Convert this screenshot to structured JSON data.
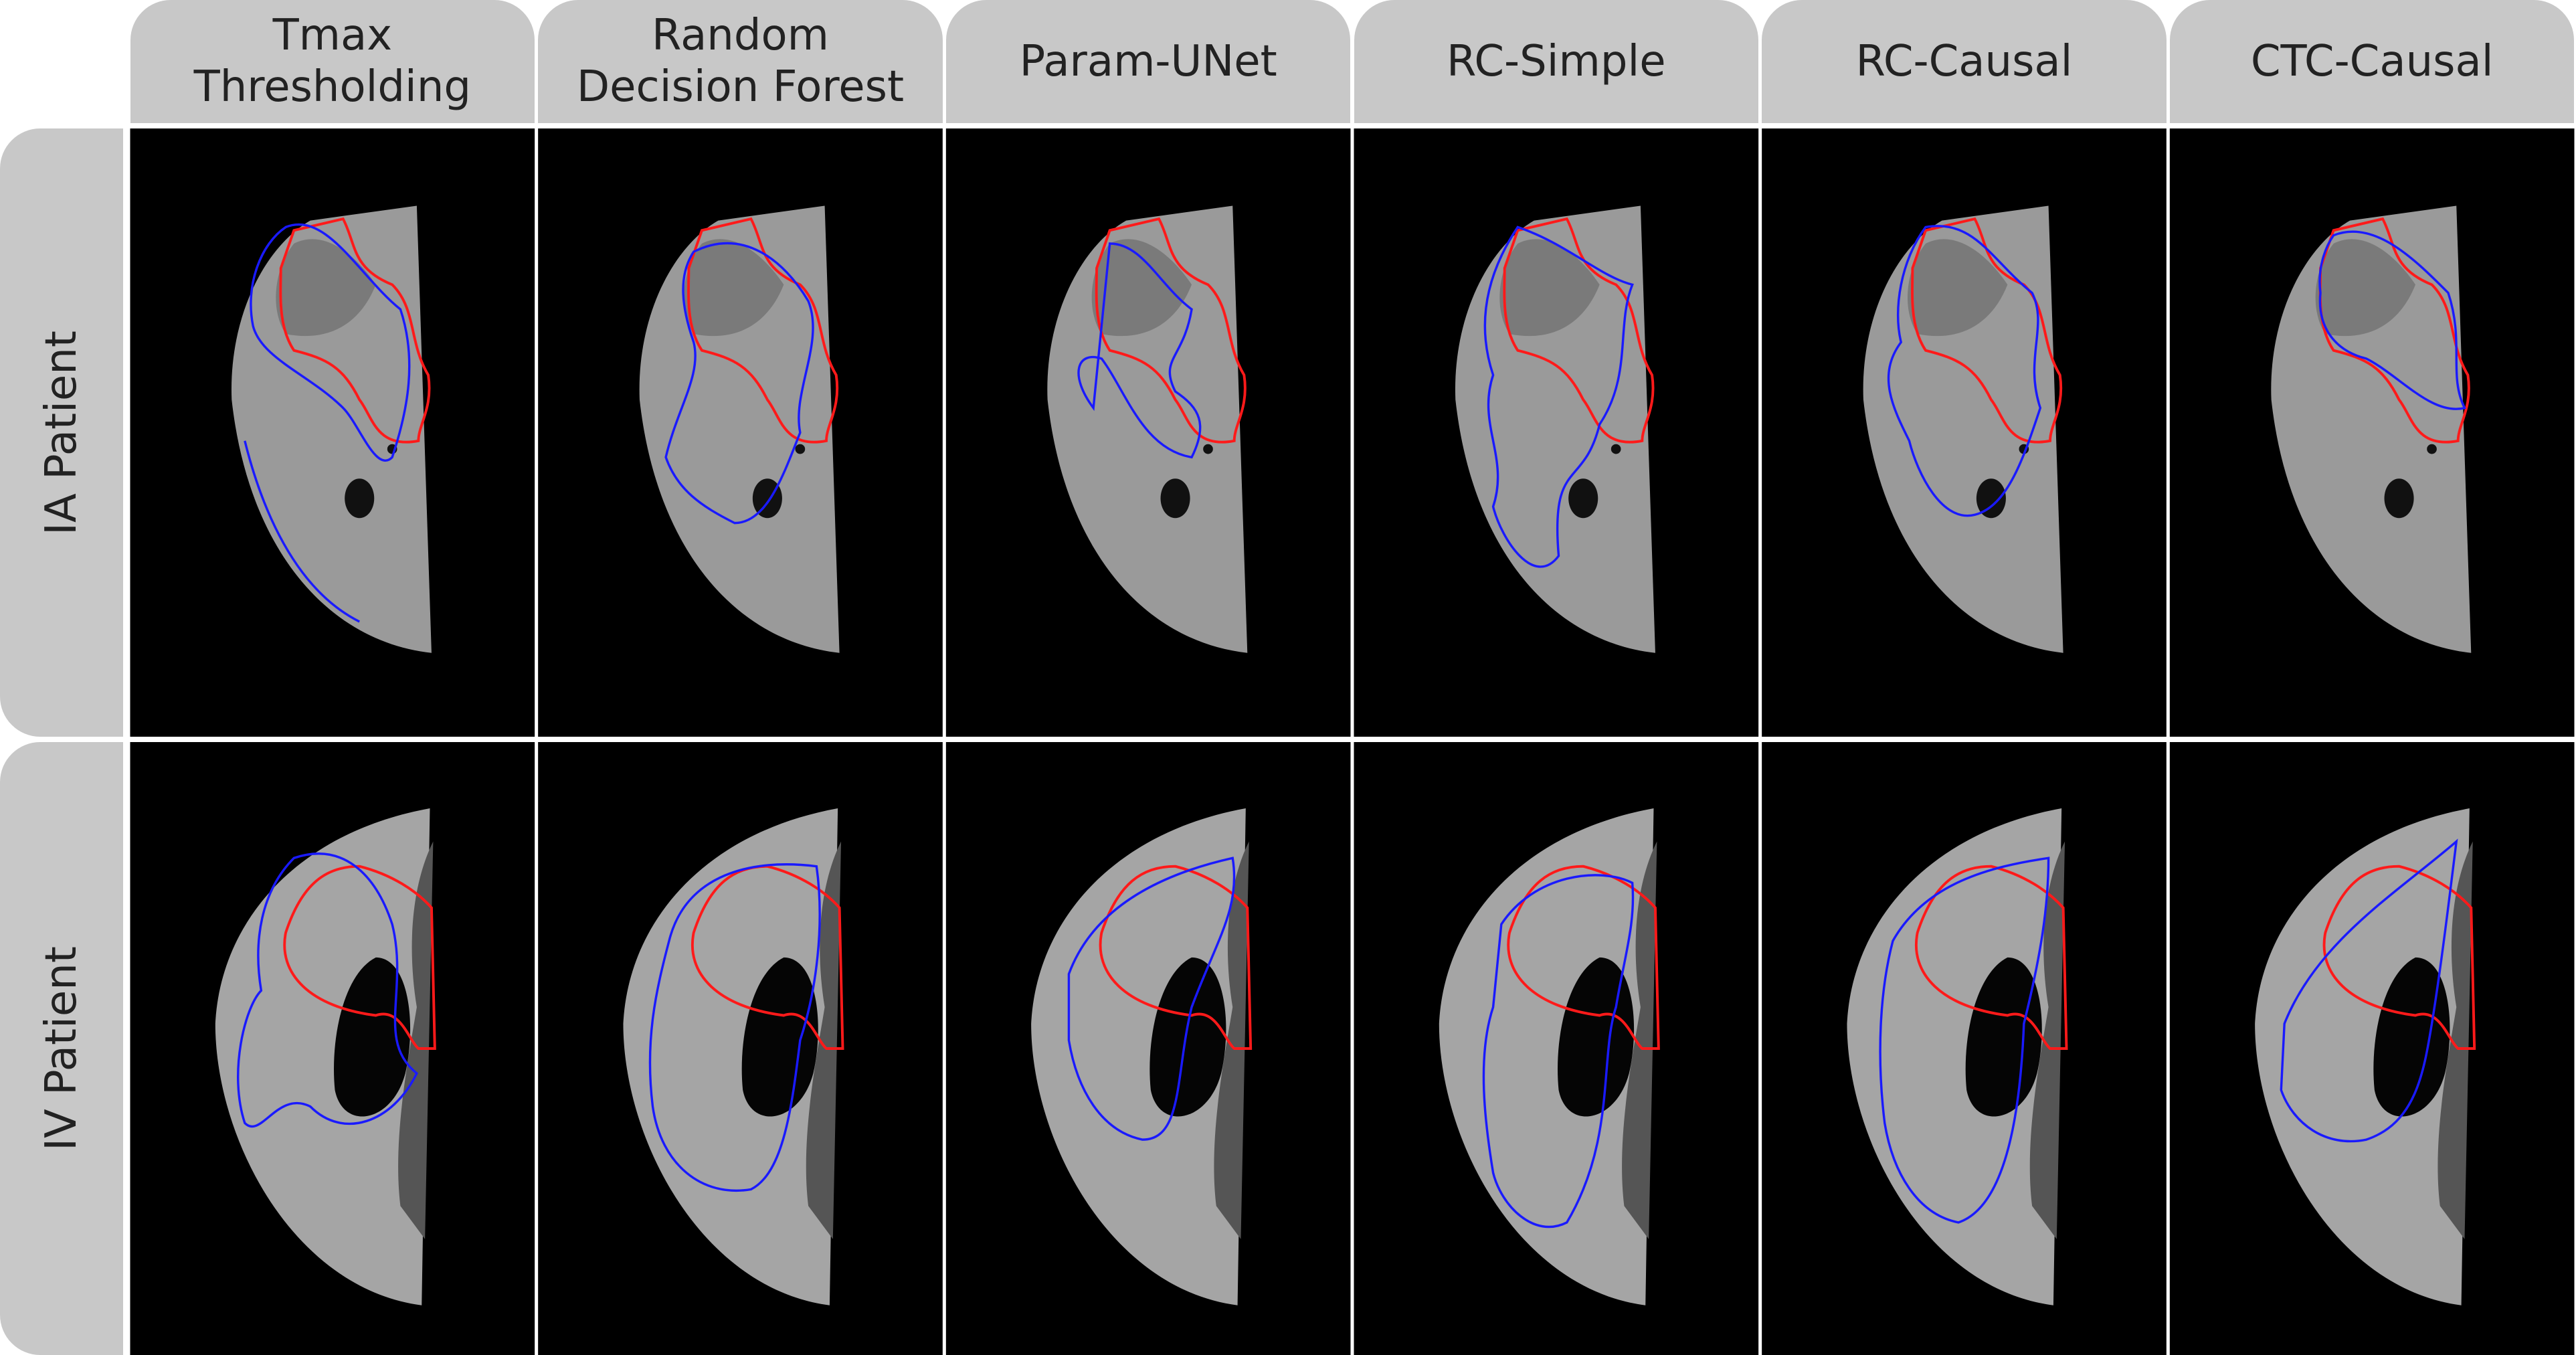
{
  "columns": [
    "Tmax\nThresholding",
    "Random\nDecision Forest",
    "Param-UNet",
    "RC-Simple",
    "RC-Causal",
    "CTC-Causal"
  ],
  "rows": [
    "IA Patient",
    "IV Patient"
  ]
}
